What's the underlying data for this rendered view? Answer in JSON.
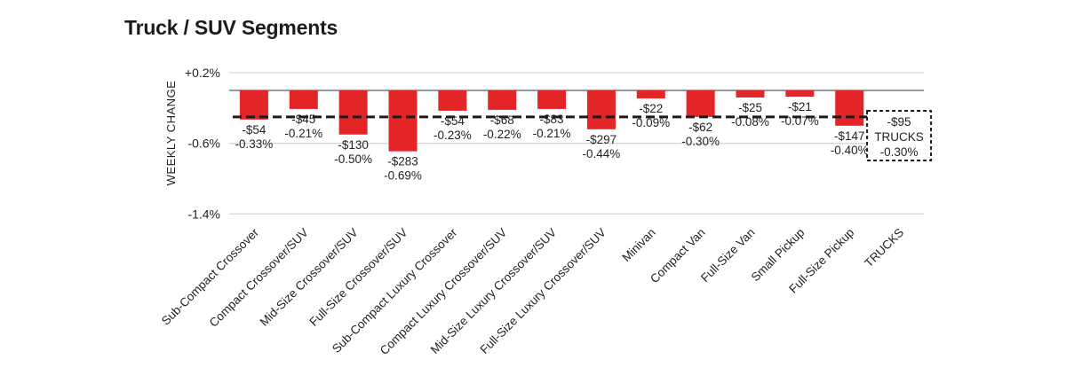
{
  "chart_data": {
    "type": "bar",
    "title": "Truck / SUV Segments",
    "ylabel": "WEEKLY CHANGE",
    "ylim": [
      -1.4,
      0.2
    ],
    "grid": true,
    "legend": "none",
    "yticks": [
      {
        "value": 0.2,
        "label": "+0.2%"
      },
      {
        "value": -0.6,
        "label": "-0.6%"
      },
      {
        "value": -1.4,
        "label": "-1.4%"
      }
    ],
    "bar_color": "#e42527",
    "colors": {
      "gridline": "#d9d9d9",
      "zero_line": "#9b9b9b",
      "reference_line": "#1a1a1a",
      "text": "#231f20",
      "background": "#ffffff"
    },
    "categories": [
      "Sub-Compact Crossover",
      "Compact Crossover/SUV",
      "Mid-Size Crossover/SUV",
      "Full-Size Crossover/SUV",
      "Sub-Compact Luxury Crossover",
      "Compact Luxury Crossover/SUV",
      "Mid-Size Luxury Crossover/SUV",
      "Full-Size Luxury Crossover/SUV",
      "Minivan",
      "Compact Van",
      "Full-Size Van",
      "Small Pickup",
      "Full-Size Pickup",
      "TRUCKS"
    ],
    "bars": [
      {
        "category": "Sub-Compact Crossover",
        "dollar_label": "-$54",
        "percent_label": "-0.33%",
        "percent": -0.33
      },
      {
        "category": "Compact Crossover/SUV",
        "dollar_label": "-$45",
        "percent_label": "-0.21%",
        "percent": -0.21
      },
      {
        "category": "Mid-Size Crossover/SUV",
        "dollar_label": "-$130",
        "percent_label": "-0.50%",
        "percent": -0.5
      },
      {
        "category": "Full-Size Crossover/SUV",
        "dollar_label": "-$283",
        "percent_label": "-0.69%",
        "percent": -0.69
      },
      {
        "category": "Sub-Compact Luxury Crossover",
        "dollar_label": "-$54",
        "percent_label": "-0.23%",
        "percent": -0.23
      },
      {
        "category": "Compact Luxury Crossover/SUV",
        "dollar_label": "-$68",
        "percent_label": "-0.22%",
        "percent": -0.22
      },
      {
        "category": "Mid-Size Luxury Crossover/SUV",
        "dollar_label": "-$83",
        "percent_label": "-0.21%",
        "percent": -0.21
      },
      {
        "category": "Full-Size Luxury Crossover/SUV",
        "dollar_label": "-$297",
        "percent_label": "-0.44%",
        "percent": -0.44
      },
      {
        "category": "Minivan",
        "dollar_label": "-$22",
        "percent_label": "-0.09%",
        "percent": -0.09
      },
      {
        "category": "Compact Van",
        "dollar_label": "-$62",
        "percent_label": "-0.30%",
        "percent": -0.3
      },
      {
        "category": "Full-Size Van",
        "dollar_label": "-$25",
        "percent_label": "-0.08%",
        "percent": -0.08
      },
      {
        "category": "Small Pickup",
        "dollar_label": "-$21",
        "percent_label": "-0.07%",
        "percent": -0.07
      },
      {
        "category": "Full-Size Pickup",
        "dollar_label": "-$147",
        "percent_label": "-0.40%",
        "percent": -0.4
      }
    ],
    "overall": {
      "category": "TRUCKS",
      "dollar_label": "-$95",
      "name_label": "TRUCKS",
      "percent_label": "-0.30%",
      "percent": -0.3,
      "display": "dashed-box"
    },
    "reference_line": {
      "percent": -0.3,
      "style": "dashed"
    }
  }
}
